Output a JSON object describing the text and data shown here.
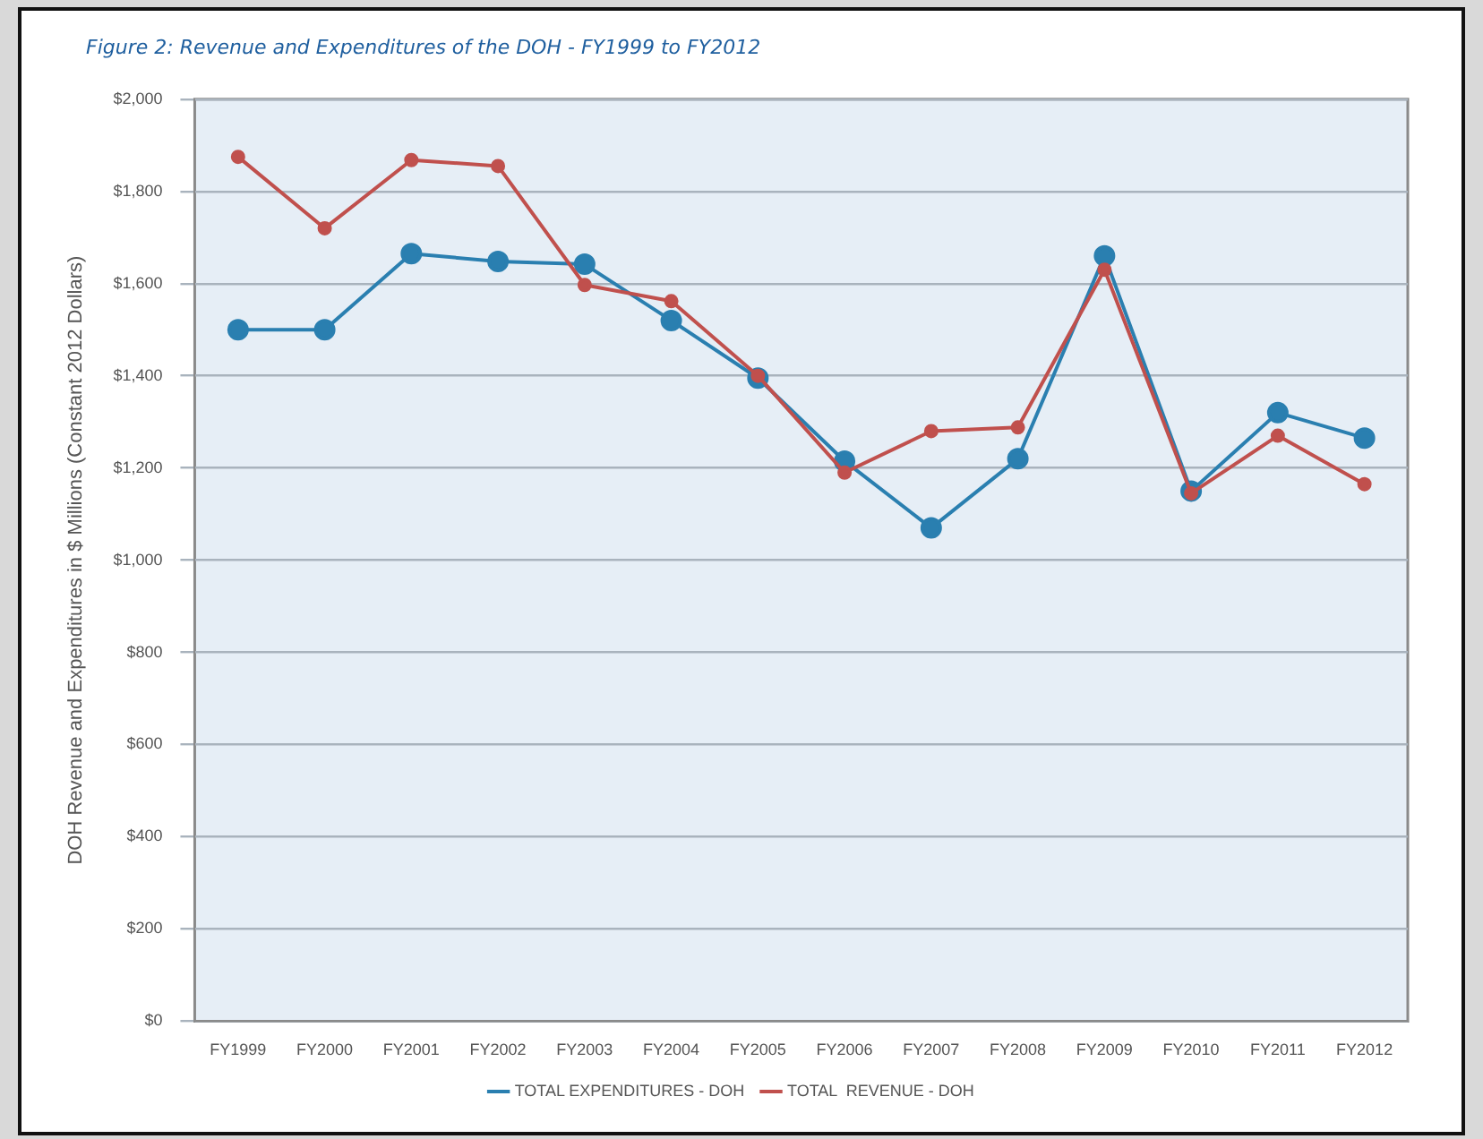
{
  "chart_data": {
    "type": "line",
    "title": "Figure 2: Revenue and Expenditures of the DOH - FY1999 to FY2012",
    "ylabel": "DOH Revenue and Expenditures in $ Millions (Constant 2012 Dollars)",
    "categories": [
      "FY1999",
      "FY2000",
      "FY2001",
      "FY2002",
      "FY2003",
      "FY2004",
      "FY2005",
      "FY2006",
      "FY2007",
      "FY2008",
      "FY2009",
      "FY2010",
      "FY2011",
      "FY2012"
    ],
    "series": [
      {
        "name": "TOTAL EXPENDITURES - DOH",
        "color": "#2a7fb0",
        "values": [
          1500,
          1500,
          1665,
          1648,
          1642,
          1520,
          1395,
          1215,
          1070,
          1220,
          1660,
          1150,
          1320,
          1265
        ]
      },
      {
        "name": "TOTAL  REVENUE - DOH",
        "color": "#c0504d",
        "values": [
          1875,
          1720,
          1868,
          1855,
          1597,
          1562,
          1400,
          1190,
          1280,
          1288,
          1630,
          1145,
          1270,
          1165
        ]
      }
    ],
    "ylim": [
      0,
      2000
    ],
    "yticks": [
      {
        "value": 0,
        "label": "$0"
      },
      {
        "value": 200,
        "label": "$200"
      },
      {
        "value": 400,
        "label": "$400"
      },
      {
        "value": 600,
        "label": "$600"
      },
      {
        "value": 800,
        "label": "$800"
      },
      {
        "value": 1000,
        "label": "$1,000"
      },
      {
        "value": 1200,
        "label": "$1,200"
      },
      {
        "value": 1400,
        "label": "$1,400"
      },
      {
        "value": 1600,
        "label": "$1,600"
      },
      {
        "value": 1800,
        "label": "$1,800"
      },
      {
        "value": 2000,
        "label": "$2,000"
      }
    ],
    "grid": "y",
    "legend": "bottom",
    "marker": "circle",
    "line_style": "solid"
  }
}
